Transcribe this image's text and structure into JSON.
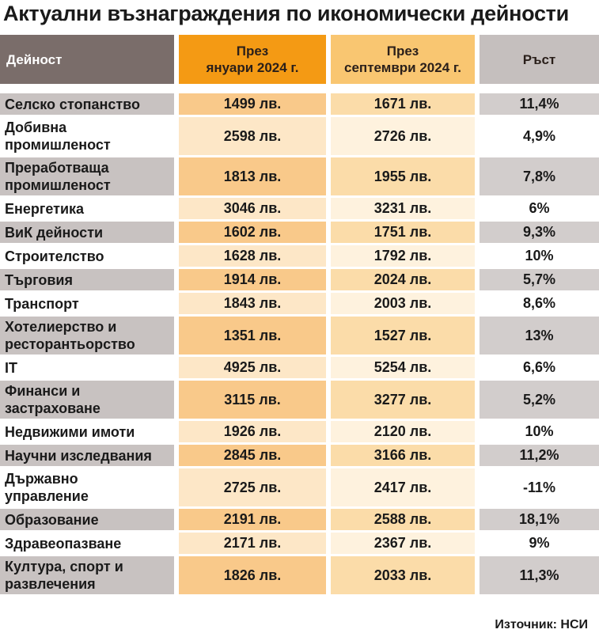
{
  "title": "Актуални възнаграждения по икономически дейности",
  "source": "Източник: НСИ",
  "chart_data": {
    "type": "table",
    "columns": [
      "Дейност",
      "През\nянуари 2024 г.",
      "През\nсептември 2024 г.",
      "Ръст"
    ],
    "rows": [
      {
        "activity": "Селско стопанство",
        "jan": "1499 лв.",
        "sep": "1671 лв.",
        "growth": "11,4%"
      },
      {
        "activity": "Добивна\nпромишленост",
        "jan": "2598 лв.",
        "sep": "2726 лв.",
        "growth": "4,9%"
      },
      {
        "activity": "Преработваща\nпромишленост",
        "jan": "1813 лв.",
        "sep": "1955 лв.",
        "growth": "7,8%"
      },
      {
        "activity": "Енергетика",
        "jan": "3046 лв.",
        "sep": "3231 лв.",
        "growth": "6%"
      },
      {
        "activity": "ВиК дейности",
        "jan": "1602 лв.",
        "sep": "1751 лв.",
        "growth": "9,3%"
      },
      {
        "activity": "Строителство",
        "jan": "1628 лв.",
        "sep": "1792 лв.",
        "growth": "10%"
      },
      {
        "activity": "Търговия",
        "jan": "1914 лв.",
        "sep": "2024 лв.",
        "growth": "5,7%"
      },
      {
        "activity": "Транспорт",
        "jan": "1843 лв.",
        "sep": "2003 лв.",
        "growth": "8,6%"
      },
      {
        "activity": "Хотелиерство и\nресторантьорство",
        "jan": "1351 лв.",
        "sep": "1527 лв.",
        "growth": "13%"
      },
      {
        "activity": "IT",
        "jan": "4925 лв.",
        "sep": "5254 лв.",
        "growth": "6,6%"
      },
      {
        "activity": "Финанси и\nзастраховане",
        "jan": "3115 лв.",
        "sep": "3277 лв.",
        "growth": "5,2%"
      },
      {
        "activity": "Недвижими имоти",
        "jan": "1926 лв.",
        "sep": "2120 лв.",
        "growth": "10%"
      },
      {
        "activity": "Научни изследвания",
        "jan": "2845 лв.",
        "sep": "3166 лв.",
        "growth": "11,2%"
      },
      {
        "activity": "Държавно\nуправление",
        "jan": "2725 лв.",
        "sep": "2417 лв.",
        "growth": "-11%"
      },
      {
        "activity": "Образование",
        "jan": "2191 лв.",
        "sep": "2588 лв.",
        "growth": "18,1%"
      },
      {
        "activity": "Здравеопазване",
        "jan": "2171 лв.",
        "sep": "2367 лв.",
        "growth": "9%"
      },
      {
        "activity": "Култура, спорт и\nразвлечения",
        "jan": "1826 лв.",
        "sep": "2033 лв.",
        "growth": "11,3%"
      }
    ]
  }
}
